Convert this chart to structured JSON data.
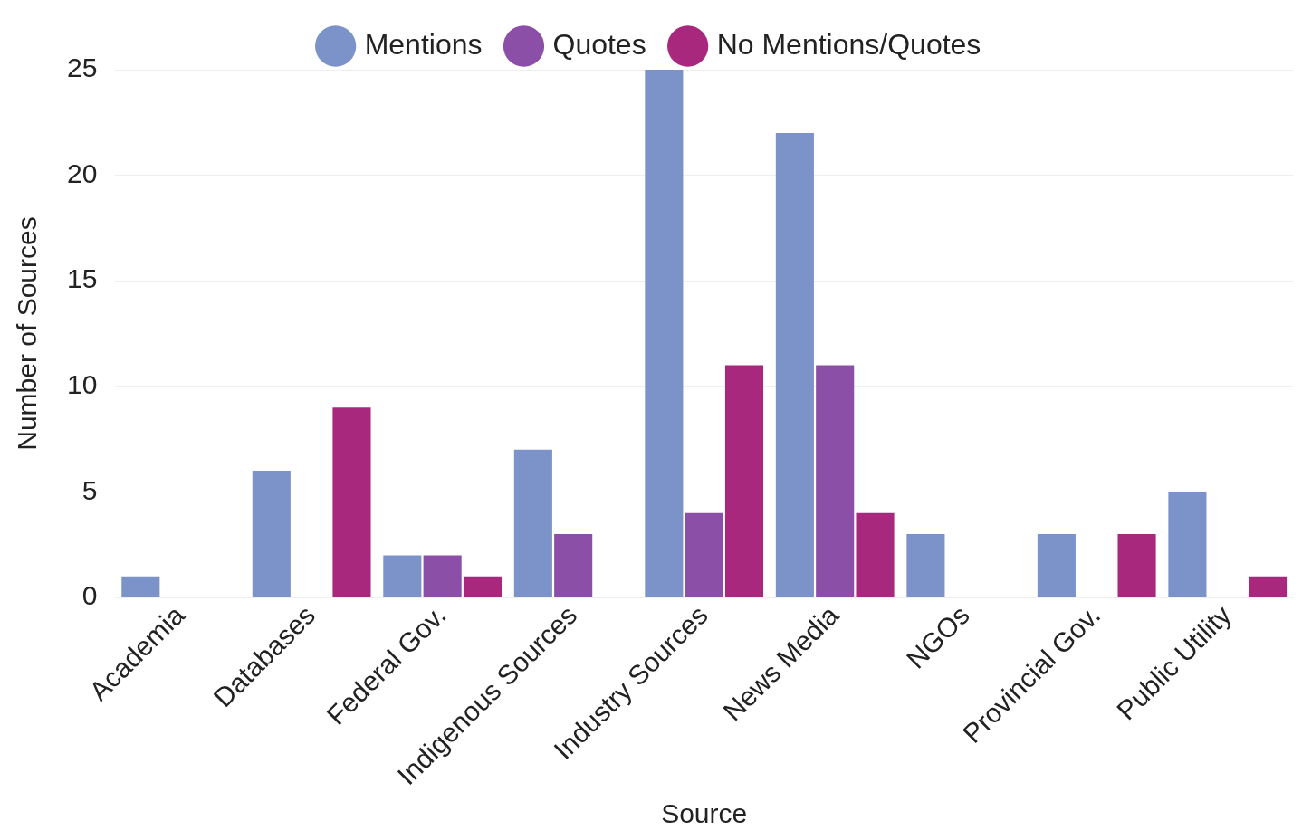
{
  "chart_data": {
    "type": "bar",
    "xlabel": "Source",
    "ylabel": "Number of Sources",
    "categories": [
      "Academia",
      "Databases",
      "Federal Gov.",
      "Indigenous Sources",
      "Industry Sources",
      "News Media",
      "NGOs",
      "Provincial Gov.",
      "Public Utility"
    ],
    "series": [
      {
        "name": "Mentions",
        "color": "#7b93c8",
        "values": [
          1,
          6,
          2,
          7,
          25,
          22,
          3,
          3,
          5
        ]
      },
      {
        "name": "Quotes",
        "color": "#8b4fa8",
        "values": [
          0,
          0,
          2,
          3,
          4,
          11,
          0,
          0,
          0
        ]
      },
      {
        "name": "No Mentions/Quotes",
        "color": "#a8287e",
        "values": [
          0,
          9,
          1,
          0,
          11,
          4,
          0,
          3,
          1
        ]
      }
    ],
    "ylim": [
      0,
      25
    ],
    "yticks": [
      0,
      5,
      10,
      15,
      20,
      25
    ],
    "grid": "y",
    "legend": "top"
  }
}
